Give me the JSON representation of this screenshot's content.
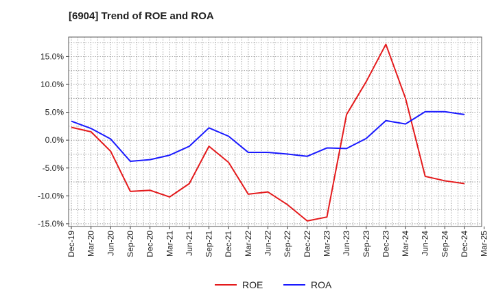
{
  "chart_data": {
    "type": "line",
    "title": "[6904]  Trend of ROE and ROA",
    "xlabel": "",
    "ylabel": "",
    "x": [
      "Dec-19",
      "Mar-20",
      "Jun-20",
      "Sep-20",
      "Dec-20",
      "Mar-21",
      "Jun-21",
      "Sep-21",
      "Dec-21",
      "Mar-22",
      "Jun-22",
      "Sep-22",
      "Dec-22",
      "Mar-23",
      "Jun-23",
      "Sep-23",
      "Dec-23",
      "Mar-24",
      "Jun-24",
      "Sep-24",
      "Dec-24",
      "Mar-25"
    ],
    "ytick_labels": [
      "15.0%",
      "10.0%",
      "5.0%",
      "0.0%",
      "-5.0%",
      "-10.0%",
      "-15.0%"
    ],
    "yticks": [
      15,
      10,
      5,
      0,
      -5,
      -10,
      -15
    ],
    "ylim": [
      -15.5,
      18.5
    ],
    "grid": true,
    "legend_position": "bottom",
    "series": [
      {
        "name": "ROE",
        "color": "#e41a1c",
        "values": [
          2.3,
          1.5,
          -2.0,
          -9.2,
          -9.0,
          -10.2,
          -7.8,
          -1.1,
          -4.0,
          -9.7,
          -9.3,
          -11.6,
          -14.5,
          -13.8,
          4.6,
          10.5,
          17.2,
          7.5,
          -6.5,
          -7.3,
          -7.8,
          null
        ]
      },
      {
        "name": "ROA",
        "color": "#1a1aff",
        "values": [
          3.4,
          2.1,
          0.2,
          -3.8,
          -3.5,
          -2.7,
          -1.1,
          2.2,
          0.7,
          -2.2,
          -2.2,
          -2.5,
          -2.9,
          -1.4,
          -1.5,
          0.3,
          3.5,
          2.9,
          5.1,
          5.1,
          4.6,
          null
        ]
      }
    ]
  }
}
